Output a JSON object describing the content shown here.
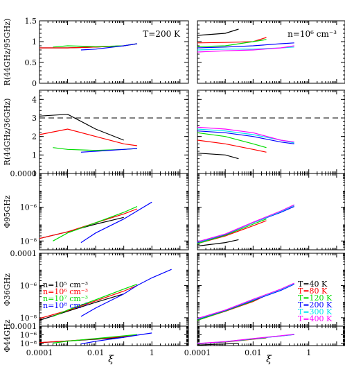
{
  "chart_data": {
    "type": "line",
    "x_axis": {
      "label": "ξ",
      "scale": "log",
      "range": [
        0.0001,
        20
      ],
      "tick_labels": [
        "0.0001",
        "0.01",
        "1"
      ]
    },
    "rows": [
      {
        "ylabel": "R(44GHz/95GHz)",
        "scale": "linear",
        "ylim": [
          0,
          1.5
        ],
        "tick_values": [
          0,
          0.5,
          1,
          1.5
        ],
        "tick_labels": [
          "0",
          "0.5",
          "1",
          "1.5"
        ]
      },
      {
        "ylabel": "R(44GHz/36GHz)",
        "scale": "linear",
        "ylim": [
          0,
          4.5
        ],
        "tick_values": [
          0,
          1,
          2,
          3,
          4
        ],
        "tick_labels": [
          "0",
          "1",
          "2",
          "3",
          "4"
        ],
        "reference_line": 3
      },
      {
        "ylabel": "Φ95GHz",
        "scale": "log",
        "ylim": [
          3e-09,
          0.0001
        ],
        "tick_values": [
          1e-08,
          1e-06,
          0.0001
        ],
        "tick_labels": [
          "10⁻⁸",
          "10⁻⁶",
          "0.0001"
        ]
      },
      {
        "ylabel": "Φ36GHz",
        "scale": "log",
        "ylim": [
          3e-09,
          0.0001
        ],
        "tick_values": [
          1e-08,
          1e-06,
          0.0001
        ],
        "tick_labels": [
          "10⁻⁸",
          "10⁻⁶",
          "0.0001"
        ]
      },
      {
        "ylabel": "Φ44GHz",
        "scale": "log",
        "ylim": [
          3e-09,
          0.0001
        ],
        "tick_values": [
          1e-08,
          1e-06,
          0.0001
        ],
        "tick_labels": [
          "10⁻⁸",
          "10⁻⁶",
          "0.0001"
        ]
      }
    ],
    "columns": [
      {
        "annotation": "T=200 K",
        "legend": [
          {
            "label": "n=10⁵ cm⁻³",
            "color": "#000000"
          },
          {
            "label": "n=10⁶ cm⁻³",
            "color": "#ff0000"
          },
          {
            "label": "n=10⁷ cm⁻³",
            "color": "#00dd00"
          },
          {
            "label": "n=10⁸ cm⁻³",
            "color": "#0000ff"
          }
        ],
        "series": [
          {
            "color": "#000000",
            "x": [
              0.0001,
              0.001,
              0.01,
              0.1
            ],
            "rows": [
              [
                0.85,
                0.85,
                0.87,
                0.9
              ],
              [
                3.1,
                3.2,
                2.4,
                1.8
              ],
              [
                1.4e-08,
                3.5e-08,
                1e-07,
                2.5e-07
              ],
              [
                7e-09,
                2.5e-08,
                9e-08,
                3e-07
              ],
              [
                1.4e-08,
                3.5e-08,
                9e-08,
                2.5e-07
              ]
            ]
          },
          {
            "color": "#ff0000",
            "x": [
              0.0001,
              0.001,
              0.01,
              0.1,
              0.3
            ],
            "rows": [
              [
                0.85,
                0.85,
                0.87,
                0.9,
                0.95
              ],
              [
                2.1,
                2.4,
                2.0,
                1.6,
                1.5
              ],
              [
                1.4e-08,
                3.5e-08,
                1.2e-07,
                4e-07,
                8e-07
              ],
              [
                9e-09,
                2.8e-08,
                1.1e-07,
                4.5e-07,
                1e-06
              ],
              [
                1.5e-08,
                3.6e-08,
                1.1e-07,
                3.8e-07,
                8e-07
              ]
            ]
          },
          {
            "color": "#00dd00",
            "x": [
              0.0003,
              0.001,
              0.01,
              0.1,
              0.3
            ],
            "rows": [
              [
                0.87,
                0.9,
                0.88,
                0.9,
                0.95
              ],
              [
                1.4,
                1.3,
                1.25,
                1.3,
                1.35
              ],
              [
                1e-08,
                3e-08,
                1.2e-07,
                5e-07,
                1.1e-06
              ],
              [
                1.2e-08,
                3e-08,
                1.3e-07,
                6e-07,
                1.2e-06
              ],
              [
                1.1e-08,
                3.2e-08,
                1.3e-07,
                5.5e-07,
                1.1e-06
              ]
            ]
          },
          {
            "color": "#0000ff",
            "x": [
              0.003,
              0.01,
              0.1,
              0.3,
              1.0,
              5.0
            ],
            "rows": [
              [
                0.8,
                0.82,
                0.9,
                0.95,
                null,
                null
              ],
              [
                1.15,
                1.2,
                1.3,
                1.35,
                null,
                null
              ],
              [
                8e-09,
                3e-08,
                2e-07,
                6e-07,
                2e-06,
                null
              ],
              [
                1.2e-08,
                4e-08,
                3e-07,
                1e-06,
                3e-06,
                1e-05
              ],
              [
                7e-09,
                3e-08,
                2.5e-07,
                8e-07,
                2.5e-06,
                null
              ]
            ]
          }
        ]
      },
      {
        "annotation": "n=10⁶ cm⁻³",
        "legend": [
          {
            "label": "T=40 K",
            "color": "#000000"
          },
          {
            "label": "T=80 K",
            "color": "#ff0000"
          },
          {
            "label": "T=120 K",
            "color": "#00dd00"
          },
          {
            "label": "T=200 K",
            "color": "#0000ff"
          },
          {
            "label": "T=300 K",
            "color": "#00e5ee"
          },
          {
            "label": "T=400 K",
            "color": "#ff00ff"
          }
        ],
        "series": [
          {
            "color": "#000000",
            "x": [
              0.0001,
              0.001,
              0.003,
              0.01,
              0.03
            ],
            "rows": [
              [
                1.15,
                1.2,
                1.3,
                null,
                null
              ],
              [
                1.1,
                1.0,
                0.8,
                null,
                null
              ],
              [
                5e-09,
                8e-09,
                1.2e-08,
                null,
                null
              ],
              [
                8e-09,
                2.5e-08,
                5e-08,
                1.1e-07,
                2.5e-07
              ],
              [
                4e-09,
                7e-09,
                1e-08,
                null,
                null
              ]
            ]
          },
          {
            "color": "#ff0000",
            "x": [
              0.0001,
              0.001,
              0.01,
              0.03
            ],
            "rows": [
              [
                0.97,
                0.98,
                1.0,
                1.1
              ],
              [
                1.8,
                1.6,
                1.3,
                1.15
              ],
              [
                7e-09,
                2e-08,
                8e-08,
                1.6e-07
              ],
              [
                7e-09,
                2.5e-08,
                1e-07,
                2.5e-07
              ],
              [
                7e-09,
                2e-08,
                9e-08,
                1.8e-07
              ]
            ]
          },
          {
            "color": "#00dd00",
            "x": [
              0.0001,
              0.001,
              0.01,
              0.03
            ],
            "rows": [
              [
                0.88,
                0.9,
                1.0,
                1.05
              ],
              [
                2.2,
                2.0,
                1.6,
                1.4
              ],
              [
                7e-09,
                2.2e-08,
                1e-07,
                2e-07
              ],
              [
                7e-09,
                2.6e-08,
                1.1e-07,
                2.8e-07
              ],
              [
                7e-09,
                2.2e-08,
                1e-07,
                2e-07
              ]
            ]
          },
          {
            "color": "#0000ff",
            "x": [
              0.0001,
              0.001,
              0.01,
              0.1,
              0.3
            ],
            "rows": [
              [
                0.85,
                0.87,
                0.9,
                0.95,
                0.97
              ],
              [
                2.3,
                2.2,
                2.0,
                1.7,
                1.6
              ],
              [
                8e-09,
                2.4e-08,
                1.2e-07,
                5e-07,
                1.1e-06
              ],
              [
                8e-09,
                2.8e-08,
                1.2e-07,
                5e-07,
                1.2e-06
              ],
              [
                8e-09,
                2.3e-08,
                1.1e-07,
                5e-07,
                1.1e-06
              ]
            ]
          },
          {
            "color": "#00e5ee",
            "x": [
              0.0001,
              0.001,
              0.01,
              0.1,
              0.3
            ],
            "rows": [
              [
                0.8,
                0.82,
                0.82,
                0.85,
                0.87
              ],
              [
                2.4,
                2.3,
                2.1,
                1.8,
                1.65
              ],
              [
                8.5e-09,
                2.5e-08,
                1.2e-07,
                5.5e-07,
                1.3e-06
              ],
              [
                8.5e-09,
                2.9e-08,
                1.3e-07,
                5.5e-07,
                1.3e-06
              ],
              [
                8.5e-09,
                2.4e-08,
                1.2e-07,
                5.5e-07,
                1.2e-06
              ]
            ]
          },
          {
            "color": "#ff00ff",
            "x": [
              0.0001,
              0.001,
              0.01,
              0.1,
              0.3
            ],
            "rows": [
              [
                0.75,
                0.78,
                0.8,
                0.85,
                0.9
              ],
              [
                2.5,
                2.4,
                2.2,
                1.8,
                1.7
              ],
              [
                9e-09,
                2.6e-08,
                1.3e-07,
                6e-07,
                1.4e-06
              ],
              [
                9e-09,
                3e-08,
                1.4e-07,
                6e-07,
                1.4e-06
              ],
              [
                9e-09,
                2.5e-08,
                1.3e-07,
                6e-07,
                1.3e-06
              ]
            ]
          }
        ]
      }
    ]
  }
}
